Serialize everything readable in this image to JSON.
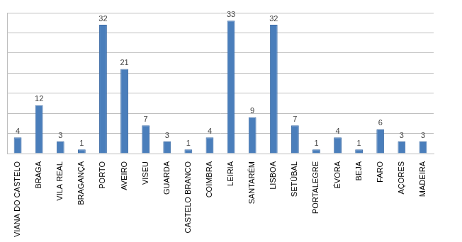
{
  "chart_data": {
    "type": "bar",
    "categories": [
      "VIANA DO CASTELO",
      "BRAGA",
      "VILA REAL",
      "BRAGANÇA",
      "PORTO",
      "AVEIRO",
      "VISEU",
      "GUARDA",
      "CASTELO BRANCO",
      "COIMBRA",
      "LEIRIA",
      "SANTARÉM",
      "LISBOA",
      "SETÚBAL",
      "PORTALEGRE",
      "ÉVORA",
      "BEJA",
      "FARO",
      "AÇORES",
      "MADEIRA"
    ],
    "values": [
      4,
      12,
      3,
      1,
      32,
      21,
      7,
      3,
      1,
      4,
      33,
      9,
      32,
      7,
      1,
      4,
      1,
      6,
      3,
      3
    ],
    "color": "#4a7ebb",
    "ylim": [
      0,
      35
    ],
    "yticks": [
      0,
      5,
      10,
      15,
      20,
      25,
      30,
      35
    ],
    "grid": true,
    "data_labels": true,
    "tick_labels": "x"
  }
}
